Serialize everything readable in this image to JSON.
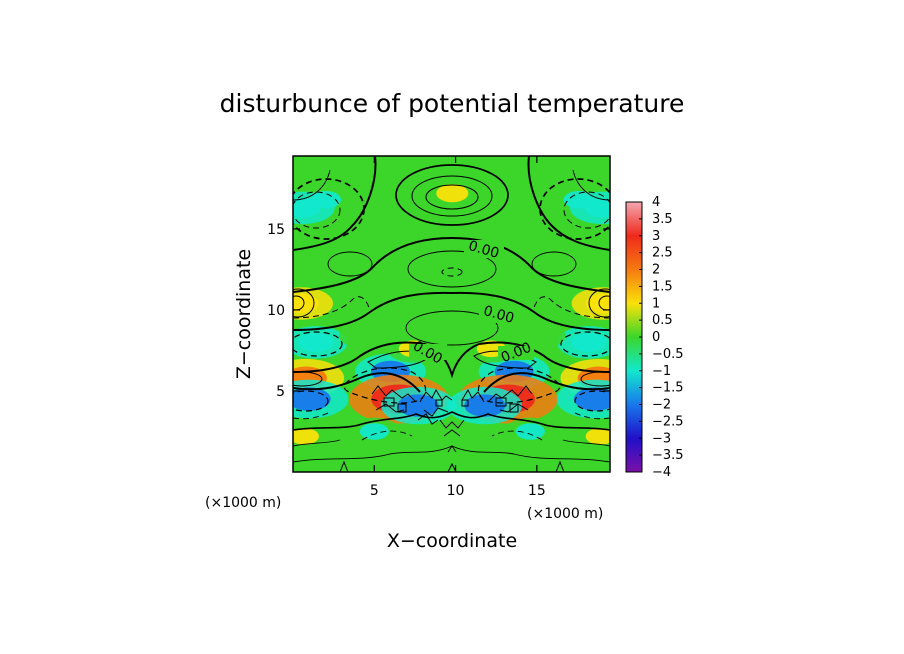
{
  "chart_data": {
    "type": "heatmap",
    "title": "disturbunce of potential temperature",
    "xlabel": "X−coordinate",
    "ylabel": "Z−coordinate",
    "x_unit": "(×1000 m)",
    "y_unit": "(×1000 m)",
    "xlim": [
      0,
      19.5
    ],
    "ylim": [
      0,
      19.5
    ],
    "x_ticks": [
      5,
      10,
      15
    ],
    "x_tick_labels": [
      "5",
      "10",
      "15"
    ],
    "y_ticks": [
      5,
      10,
      15
    ],
    "y_tick_labels": [
      "5",
      "10",
      "15"
    ],
    "colorbar": {
      "range": [
        -4,
        4
      ],
      "tick_values": [
        4,
        3.5,
        3,
        2.5,
        2,
        1.5,
        1,
        0.5,
        0,
        -0.5,
        -1,
        -1.5,
        -2,
        -2.5,
        -3,
        -3.5,
        -4
      ],
      "tick_labels": [
        "4",
        "3.5",
        "3",
        "2.5",
        "2",
        "1.5",
        "1",
        "0.5",
        "0",
        "−0.5",
        "−1",
        "−1.5",
        "−2",
        "−2.5",
        "−3",
        "−3.5",
        "−4"
      ],
      "colors": [
        "#f4a6b0",
        "#ee2a1c",
        "#f57a10",
        "#fbe10a",
        "#3cd62a",
        "#12e8cc",
        "#1878ec",
        "#2010c8",
        "#7a10a8"
      ]
    },
    "contour_labels": [
      "0.00",
      "0.00",
      "0.00",
      "0.00"
    ],
    "features": [
      {
        "x": 9.8,
        "z": 17.2,
        "value": 0.9
      },
      {
        "x": 9.6,
        "z": 12.4,
        "value": 0.4
      },
      {
        "x": 9.8,
        "z": 9.0,
        "value": 0.5
      },
      {
        "x": 2.0,
        "z": 16.8,
        "value": -0.8
      },
      {
        "x": 17.6,
        "z": 16.8,
        "value": -0.8
      },
      {
        "x": 0.6,
        "z": 16.3,
        "value": -1.2
      },
      {
        "x": 19.0,
        "z": 16.3,
        "value": -1.2
      },
      {
        "x": 0.5,
        "z": 10.4,
        "value": 1.2
      },
      {
        "x": 19.1,
        "z": 10.4,
        "value": 1.2
      },
      {
        "x": 1.4,
        "z": 8.0,
        "value": -1.2
      },
      {
        "x": 18.2,
        "z": 8.0,
        "value": -1.2
      },
      {
        "x": 4.3,
        "z": 8.4,
        "value": 0.3
      },
      {
        "x": 15.3,
        "z": 8.4,
        "value": 0.3
      },
      {
        "x": 0.8,
        "z": 5.8,
        "value": 1.9
      },
      {
        "x": 18.8,
        "z": 5.8,
        "value": 1.9
      },
      {
        "x": 1.0,
        "z": 4.5,
        "value": -2.0
      },
      {
        "x": 18.6,
        "z": 4.5,
        "value": -2.0
      },
      {
        "x": 6.0,
        "z": 6.2,
        "value": -1.6
      },
      {
        "x": 13.6,
        "z": 6.2,
        "value": -1.6
      },
      {
        "x": 7.4,
        "z": 7.6,
        "value": 0.6
      },
      {
        "x": 12.2,
        "z": 7.6,
        "value": 0.6
      },
      {
        "x": 6.5,
        "z": 4.5,
        "value": 3.2
      },
      {
        "x": 13.2,
        "z": 4.5,
        "value": 3.2
      },
      {
        "x": 7.7,
        "z": 4.1,
        "value": -1.8
      },
      {
        "x": 11.8,
        "z": 4.1,
        "value": -1.8
      },
      {
        "x": 5.0,
        "z": 2.5,
        "value": -0.6
      },
      {
        "x": 14.6,
        "z": 2.5,
        "value": -0.6
      },
      {
        "x": 9.8,
        "z": 2.0,
        "value": 0.3
      },
      {
        "x": 0.7,
        "z": 2.2,
        "value": 0.6
      },
      {
        "x": 18.9,
        "z": 2.2,
        "value": 0.6
      }
    ]
  }
}
